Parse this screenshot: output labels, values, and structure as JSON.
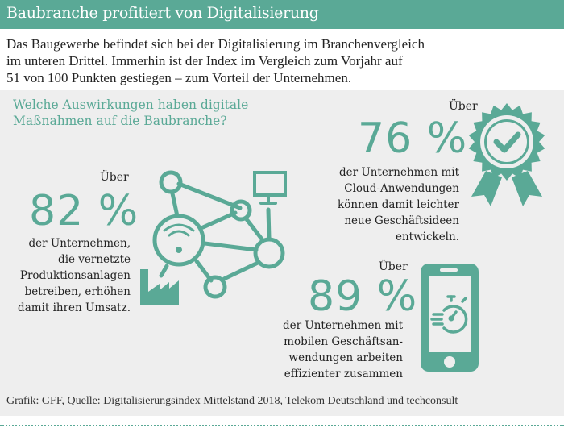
{
  "header": {
    "title": "Baubranche profitiert von Digitalisierung"
  },
  "intro": {
    "lines": [
      "Das Baugewerbe befindet sich bei der Digitalisierung im Branchenvergleich",
      "im unteren Drittel. Immerhin ist der Index im Vergleich zum Vorjahr auf",
      "51 von 100 Punkten gestiegen – zum Vorteil der Unternehmen."
    ]
  },
  "question": {
    "lines": [
      "Welche Auswirkungen haben digitale",
      "Maßnahmen auf die Baubranche?"
    ]
  },
  "stats": [
    {
      "prefix": "Über",
      "value": "82 %",
      "lines": [
        "der Unternehmen,",
        "die vernetzte",
        "Produktionsanlagen",
        "betreiben, erhöhen",
        "damit ihren Umsatz."
      ],
      "icon": "network-factory-icon"
    },
    {
      "prefix": "Über",
      "value": "76 %",
      "lines": [
        "der Unternehmen mit",
        "Cloud-Anwendungen",
        "können damit leichter",
        "neue Geschäftsideen",
        "entwickeln."
      ],
      "icon": "award-badge-check-icon"
    },
    {
      "prefix": "Über",
      "value": "89 %",
      "lines": [
        "der Unternehmen mit",
        "mobilen Geschäftsan-",
        "wendungen arbeiten",
        "effizienter zusammen"
      ],
      "icon": "smartphone-stopwatch-icon"
    }
  ],
  "footer": {
    "source": "Grafik: GFF, Quelle: Digitalisierungsindex Mittelstand 2018, Telekom Deutschland und techconsult"
  },
  "colors": {
    "accent": "#5aa996",
    "panel": "#eeeeee",
    "text": "#222222"
  }
}
